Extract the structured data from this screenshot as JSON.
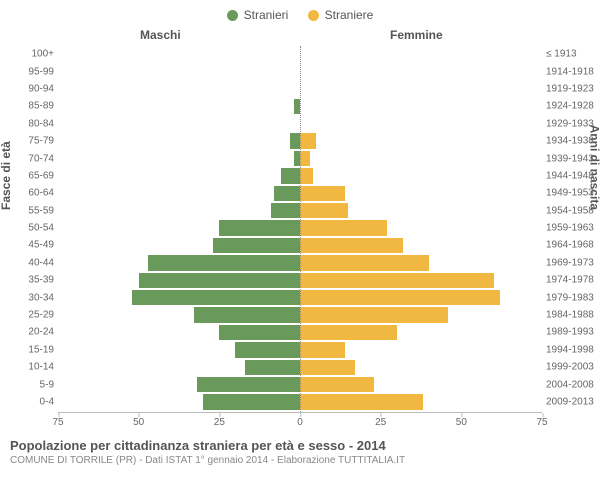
{
  "chart": {
    "type": "population-pyramid",
    "legend": {
      "male": {
        "label": "Stranieri",
        "color": "#6a9a5b"
      },
      "female": {
        "label": "Straniere",
        "color": "#f0b840"
      }
    },
    "column_headers": {
      "left": "Maschi",
      "right": "Femmine"
    },
    "y_axis_left_label": "Fasce di età",
    "y_axis_right_label": "Anni di nascita",
    "x_axis": {
      "max": 75,
      "ticks_left": [
        75,
        50,
        25,
        0
      ],
      "ticks_right": [
        25,
        50,
        75
      ]
    },
    "colors": {
      "background": "#ffffff",
      "grid": "#bbbbbb",
      "text": "#555555",
      "tick_text": "#666666",
      "center_line": "#888888"
    },
    "typography": {
      "legend_fontsize": 12,
      "header_fontsize": 12,
      "tick_fontsize": 10,
      "axis_label_fontsize": 12,
      "title_fontsize": 13,
      "subtitle_fontsize": 10,
      "font_family": "Arial"
    },
    "bar_width_ratio": 0.88,
    "rows": [
      {
        "age": "100+",
        "birth": "≤ 1913",
        "m": 0,
        "f": 0
      },
      {
        "age": "95-99",
        "birth": "1914-1918",
        "m": 0,
        "f": 0
      },
      {
        "age": "90-94",
        "birth": "1919-1923",
        "m": 0,
        "f": 0
      },
      {
        "age": "85-89",
        "birth": "1924-1928",
        "m": 2,
        "f": 0
      },
      {
        "age": "80-84",
        "birth": "1929-1933",
        "m": 0,
        "f": 0
      },
      {
        "age": "75-79",
        "birth": "1934-1938",
        "m": 3,
        "f": 5
      },
      {
        "age": "70-74",
        "birth": "1939-1943",
        "m": 2,
        "f": 3
      },
      {
        "age": "65-69",
        "birth": "1944-1948",
        "m": 6,
        "f": 4
      },
      {
        "age": "60-64",
        "birth": "1949-1953",
        "m": 8,
        "f": 14
      },
      {
        "age": "55-59",
        "birth": "1954-1958",
        "m": 9,
        "f": 15
      },
      {
        "age": "50-54",
        "birth": "1959-1963",
        "m": 25,
        "f": 27
      },
      {
        "age": "45-49",
        "birth": "1964-1968",
        "m": 27,
        "f": 32
      },
      {
        "age": "40-44",
        "birth": "1969-1973",
        "m": 47,
        "f": 40
      },
      {
        "age": "35-39",
        "birth": "1974-1978",
        "m": 50,
        "f": 60
      },
      {
        "age": "30-34",
        "birth": "1979-1983",
        "m": 52,
        "f": 62
      },
      {
        "age": "25-29",
        "birth": "1984-1988",
        "m": 33,
        "f": 46
      },
      {
        "age": "20-24",
        "birth": "1989-1993",
        "m": 25,
        "f": 30
      },
      {
        "age": "15-19",
        "birth": "1994-1998",
        "m": 20,
        "f": 14
      },
      {
        "age": "10-14",
        "birth": "1999-2003",
        "m": 17,
        "f": 17
      },
      {
        "age": "5-9",
        "birth": "2004-2008",
        "m": 32,
        "f": 23
      },
      {
        "age": "0-4",
        "birth": "2009-2013",
        "m": 30,
        "f": 38
      }
    ]
  },
  "footer": {
    "title": "Popolazione per cittadinanza straniera per età e sesso - 2014",
    "subtitle": "COMUNE DI TORRILE (PR) - Dati ISTAT 1° gennaio 2014 - Elaborazione TUTTITALIA.IT"
  }
}
